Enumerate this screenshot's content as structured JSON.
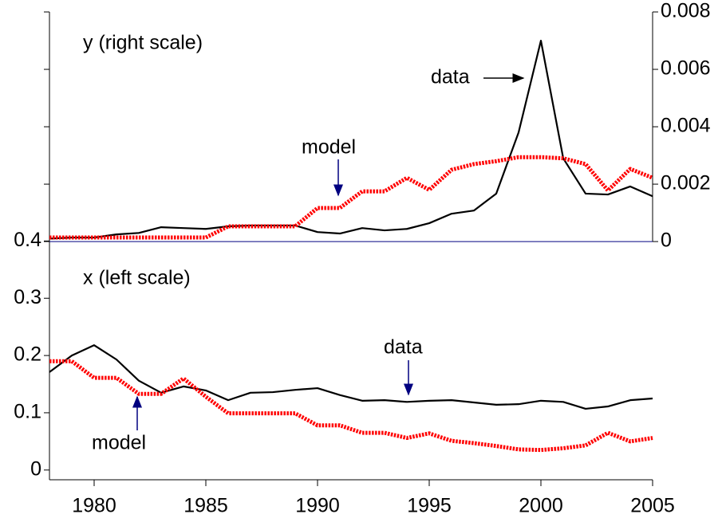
{
  "chart_data": {
    "type": "line",
    "annotations": [
      "y (right scale)",
      "x (left scale)"
    ],
    "x": [
      1978,
      1979,
      1980,
      1981,
      1982,
      1983,
      1984,
      1985,
      1986,
      1987,
      1988,
      1989,
      1990,
      1991,
      1992,
      1993,
      1994,
      1995,
      1996,
      1997,
      1998,
      1999,
      2000,
      2001,
      2002,
      2003,
      2004,
      2005
    ],
    "xlim": [
      1978,
      2005
    ],
    "xticks": [
      1980,
      1985,
      1990,
      1995,
      2000,
      2005
    ],
    "ylim": [
      -0.017,
      0.8
    ],
    "yticks": [
      0,
      0.1,
      0.2,
      0.3,
      0.4
    ],
    "y2lim": [
      -0.0083,
      0.008
    ],
    "y2ticks": [
      0,
      0.002,
      0.004,
      0.006,
      0.008
    ],
    "series": [
      {
        "name": "data",
        "axis": "y2",
        "color": "#000000",
        "style": "solid",
        "values": [
          0.0001,
          0.00014,
          0.00014,
          0.00025,
          0.0003,
          0.0005,
          0.00047,
          0.00044,
          0.00053,
          0.00056,
          0.00056,
          0.00056,
          0.00033,
          0.00028,
          0.00047,
          0.00039,
          0.00044,
          0.00064,
          0.00097,
          0.00108,
          0.00167,
          0.0038,
          0.007,
          0.0029,
          0.00167,
          0.00164,
          0.00192,
          0.00158
        ]
      },
      {
        "name": "model",
        "axis": "y2",
        "color": "#ff0000",
        "style": "dotted",
        "values": [
          0.00014,
          0.00014,
          0.00014,
          0.00014,
          0.00014,
          0.00014,
          0.00014,
          0.00014,
          0.00053,
          0.00053,
          0.00053,
          0.00053,
          0.00117,
          0.00117,
          0.00175,
          0.00175,
          0.00222,
          0.0018,
          0.0025,
          0.0027,
          0.0028,
          0.00294,
          0.00294,
          0.0029,
          0.0027,
          0.00178,
          0.00253,
          0.00222
        ]
      },
      {
        "name": "data",
        "color": "#000000",
        "style": "solid",
        "values": [
          0.171,
          0.2,
          0.218,
          0.193,
          0.156,
          0.135,
          0.146,
          0.139,
          0.122,
          0.135,
          0.136,
          0.14,
          0.143,
          0.131,
          0.121,
          0.122,
          0.119,
          0.121,
          0.122,
          0.118,
          0.114,
          0.115,
          0.121,
          0.119,
          0.107,
          0.111,
          0.122,
          0.125
        ]
      },
      {
        "name": "model",
        "color": "#ff0000",
        "style": "dotted",
        "values": [
          0.19,
          0.19,
          0.161,
          0.161,
          0.133,
          0.133,
          0.16,
          0.128,
          0.099,
          0.099,
          0.099,
          0.099,
          0.078,
          0.078,
          0.065,
          0.065,
          0.056,
          0.064,
          0.051,
          0.047,
          0.042,
          0.036,
          0.035,
          0.038,
          0.043,
          0.065,
          0.05,
          0.056
        ]
      }
    ]
  }
}
